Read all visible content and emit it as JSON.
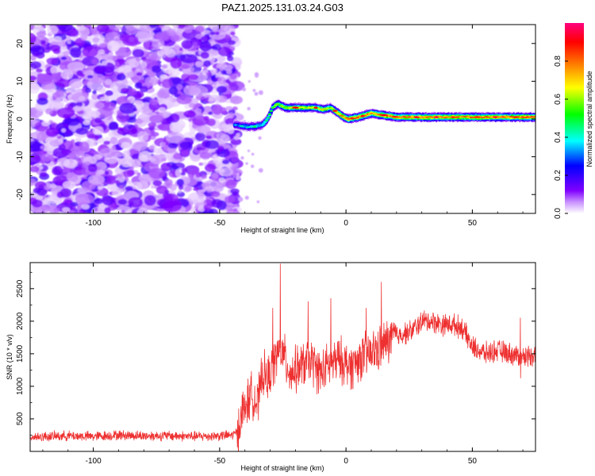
{
  "chart_data": [
    {
      "type": "heatmap",
      "title": "PAZ1.2025.131.03.24.G03",
      "xlabel": "Height of straight line (km)",
      "ylabel": "Frequency (Hz)",
      "xlim": [
        -125,
        75
      ],
      "ylim": [
        -25,
        25
      ],
      "xticks": [
        -100,
        -50,
        0,
        50
      ],
      "yticks": [
        -20,
        -10,
        0,
        10,
        20
      ],
      "noise_region_x": [
        -125,
        -43
      ],
      "signal_track": {
        "x": [
          -44,
          -40,
          -36,
          -33,
          -31,
          -29,
          -27,
          -24,
          -20,
          -16,
          -12,
          -9,
          -6,
          -3,
          -1,
          1,
          5,
          10,
          15,
          20,
          30,
          40,
          50,
          60,
          75
        ],
        "frequency_hz": [
          -1.5,
          -2,
          -2,
          -1.5,
          0,
          3,
          4,
          3,
          3,
          3,
          3,
          2.5,
          3,
          1.5,
          0.5,
          0,
          0.5,
          1.5,
          1,
          0.5,
          0.5,
          0.5,
          0.5,
          0.5,
          0.5
        ],
        "normalized_amplitude": [
          0.35,
          0.4,
          0.45,
          0.4,
          0.45,
          0.55,
          0.6,
          0.65,
          0.7,
          0.65,
          0.7,
          0.7,
          0.6,
          0.75,
          0.8,
          0.85,
          0.85,
          0.8,
          0.85,
          0.85,
          0.85,
          0.85,
          0.85,
          0.85,
          0.85
        ]
      },
      "colorbar": {
        "label": "Normalized spectral amplitude",
        "range": [
          0,
          1
        ],
        "ticks": [
          "0.0",
          "0.2",
          "0.4",
          "0.6",
          "0.8"
        ],
        "colors": [
          "#ffffff",
          "#8000ff",
          "#0000ff",
          "#00ffff",
          "#00ff00",
          "#ffff00",
          "#ff8000",
          "#ff0000",
          "#ff0080"
        ]
      }
    },
    {
      "type": "line",
      "title": "",
      "xlabel": "Height of straight line (km)",
      "ylabel": "SNR (10 * v/v)",
      "xlim": [
        -125,
        75
      ],
      "ylim": [
        0,
        2900
      ],
      "xticks": [
        -100,
        -50,
        0,
        50
      ],
      "yticks": [
        500,
        1000,
        1500,
        2000,
        2500
      ],
      "color": "#ee3030",
      "series": [
        {
          "name": "SNR",
          "x": [
            -125,
            -110,
            -100,
            -90,
            -80,
            -70,
            -60,
            -50,
            -45,
            -43,
            -41,
            -39,
            -37,
            -35,
            -33,
            -31,
            -29,
            -27,
            -25,
            -22,
            -18,
            -14,
            -10,
            -6,
            -2,
            2,
            6,
            10,
            14,
            18,
            22,
            26,
            30,
            34,
            38,
            42,
            46,
            50,
            55,
            60,
            65,
            70,
            75
          ],
          "values": [
            220,
            240,
            230,
            250,
            240,
            240,
            230,
            240,
            250,
            300,
            600,
            750,
            900,
            700,
            1200,
            1100,
            1300,
            1500,
            1500,
            1200,
            1300,
            1400,
            1200,
            1350,
            1400,
            1300,
            1450,
            1500,
            1600,
            1750,
            1800,
            1850,
            2000,
            2000,
            1950,
            1950,
            1900,
            1600,
            1500,
            1550,
            1500,
            1450,
            1500
          ],
          "spikes": [
            {
              "x": -26,
              "y": 2880
            },
            {
              "x": -29,
              "y": 2200
            },
            {
              "x": -15,
              "y": 2300
            },
            {
              "x": -6,
              "y": 2350
            },
            {
              "x": 14,
              "y": 2600
            },
            {
              "x": 8,
              "y": 2200
            },
            {
              "x": 69,
              "y": 2050
            }
          ]
        }
      ]
    }
  ]
}
